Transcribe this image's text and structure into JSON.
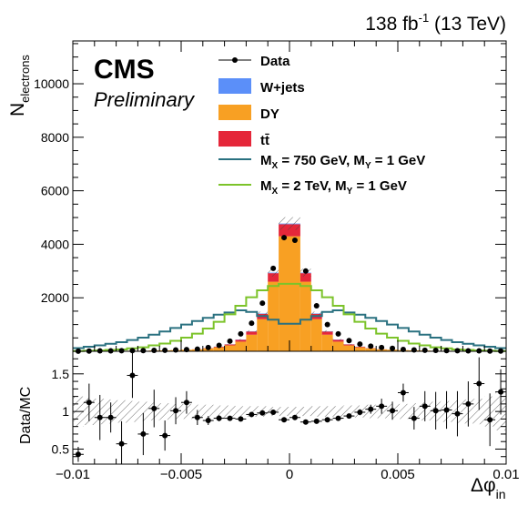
{
  "header": {
    "lumi_main": "138 fb",
    "lumi_exp": "-1",
    "lumi_energy": " (13 TeV)"
  },
  "cms": {
    "label": "CMS",
    "sublabel": "Preliminary"
  },
  "legend": {
    "data": "Data",
    "wjets": "W+jets",
    "dy": "DY",
    "ttbar": "tt̄",
    "sig1": "M_X = 750 GeV, M_Y = 1 GeV",
    "sig1_parts": [
      "M",
      "X",
      " = 750 GeV, M",
      "Y",
      " = 1 GeV"
    ],
    "sig2": "M_X = 2 TeV, M_Y = 1 GeV",
    "sig2_parts": [
      "M",
      "X",
      " = 2 TeV, M",
      "Y",
      " = 1 GeV"
    ]
  },
  "colors": {
    "wjets": "#5b8ff9",
    "dy": "#f8a023",
    "ttbar": "#e5273a",
    "sig1": "#2a7180",
    "sig2": "#7cc32a",
    "data": "#000000"
  },
  "chart_data": {
    "type": "bar",
    "xlabel_main": "Δφ",
    "xlabel_sub": "in",
    "ylabel_main": "N",
    "ylabel_sub": "electrons",
    "ratio_ylabel": "Data/MC",
    "xlim": [
      -0.01,
      0.01
    ],
    "ylim_main": [
      0,
      11600
    ],
    "ylim_ratio": [
      0.3,
      1.8
    ],
    "x_ticks": [
      -0.01,
      -0.005,
      0,
      0.005,
      0.01
    ],
    "x_tick_labels": [
      "−0.01",
      "−0.005",
      "0",
      "0.005",
      "0.01"
    ],
    "y_ticks_main": [
      2000,
      4000,
      6000,
      8000,
      10000
    ],
    "y_tick_labels_main": [
      "2000",
      "4000",
      "6000",
      "8000",
      "10000"
    ],
    "y_ticks_ratio": [
      0.5,
      1,
      1.5
    ],
    "y_tick_labels_ratio": [
      "0.5",
      "1",
      "1.5"
    ],
    "bin_edges": [
      -0.01,
      -0.0095,
      -0.009,
      -0.0085,
      -0.008,
      -0.0075,
      -0.007,
      -0.0065,
      -0.006,
      -0.0055,
      -0.005,
      -0.0045,
      -0.004,
      -0.0035,
      -0.003,
      -0.0025,
      -0.002,
      -0.0015,
      -0.001,
      -0.0005,
      0,
      0.0005,
      0.001,
      0.0015,
      0.002,
      0.0025,
      0.003,
      0.0035,
      0.004,
      0.0045,
      0.005,
      0.0055,
      0.006,
      0.0065,
      0.007,
      0.0075,
      0.008,
      0.0085,
      0.009,
      0.0095,
      0.01
    ],
    "series": [
      {
        "name": "DY",
        "type": "stacked-bar",
        "values": [
          5,
          5,
          10,
          10,
          15,
          20,
          20,
          30,
          35,
          45,
          60,
          70,
          110,
          150,
          220,
          360,
          620,
          1200,
          2600,
          4300,
          4300,
          2600,
          1200,
          620,
          360,
          220,
          150,
          110,
          70,
          60,
          45,
          35,
          30,
          20,
          20,
          15,
          10,
          10,
          5,
          5
        ]
      },
      {
        "name": "tt̄",
        "type": "stacked-bar",
        "values": [
          0,
          0,
          0,
          0,
          0,
          0,
          0,
          0,
          0,
          0,
          0,
          5,
          10,
          20,
          35,
          70,
          120,
          200,
          320,
          450,
          450,
          320,
          200,
          120,
          70,
          35,
          20,
          10,
          5,
          0,
          0,
          0,
          0,
          0,
          0,
          0,
          0,
          0,
          0,
          0
        ]
      },
      {
        "name": "W+jets",
        "type": "stacked-bar",
        "values": [
          0,
          0,
          0,
          0,
          0,
          0,
          0,
          0,
          0,
          0,
          0,
          0,
          0,
          5,
          5,
          10,
          10,
          15,
          20,
          25,
          25,
          20,
          15,
          10,
          10,
          5,
          5,
          0,
          0,
          0,
          0,
          0,
          0,
          0,
          0,
          0,
          0,
          0,
          0,
          0
        ]
      },
      {
        "name": "Data",
        "type": "points",
        "values": [
          5,
          10,
          15,
          15,
          20,
          25,
          25,
          35,
          40,
          50,
          65,
          80,
          140,
          220,
          380,
          650,
          1050,
          1800,
          3100,
          4250,
          4150,
          3000,
          1700,
          1000,
          650,
          400,
          270,
          190,
          140,
          110,
          70,
          50,
          40,
          35,
          25,
          20,
          15,
          15,
          10,
          10
        ]
      },
      {
        "name": "M_X = 750 GeV, M_Y = 1 GeV",
        "type": "step",
        "values": [
          120,
          170,
          220,
          280,
          340,
          420,
          510,
          620,
          740,
          870,
          1000,
          1130,
          1250,
          1370,
          1450,
          1530,
          1470,
          1320,
          1180,
          1030,
          1030,
          1180,
          1320,
          1470,
          1530,
          1450,
          1370,
          1250,
          1130,
          1000,
          870,
          740,
          620,
          510,
          420,
          340,
          280,
          220,
          170,
          120
        ]
      },
      {
        "name": "M_X = 2 TeV, M_Y = 1 GeV",
        "type": "step",
        "values": [
          10,
          20,
          30,
          50,
          70,
          110,
          150,
          220,
          290,
          390,
          510,
          660,
          850,
          1100,
          1380,
          1700,
          2020,
          2280,
          2440,
          2520,
          2520,
          2440,
          2280,
          2020,
          1700,
          1380,
          1100,
          850,
          660,
          510,
          390,
          290,
          220,
          150,
          110,
          70,
          50,
          30,
          20,
          10
        ]
      }
    ],
    "ratio": {
      "values": [
        0.43,
        1.12,
        0.92,
        0.92,
        0.57,
        1.48,
        0.7,
        1.04,
        0.68,
        1.01,
        1.12,
        0.92,
        0.88,
        0.91,
        0.91,
        0.9,
        0.96,
        0.98,
        0.99,
        0.89,
        0.92,
        0.86,
        0.87,
        0.89,
        0.91,
        0.94,
        0.99,
        1.03,
        1.07,
        1.01,
        1.25,
        0.91,
        1.07,
        1.01,
        1.02,
        0.97,
        1.1,
        1.37,
        0.89,
        1.26
      ],
      "errors": [
        0.1,
        0.25,
        0.3,
        0.2,
        0.3,
        0.3,
        0.28,
        0.25,
        0.2,
        0.18,
        0.15,
        0.1,
        0.06,
        0.04,
        0.03,
        0.02,
        0.02,
        0.01,
        0.01,
        0.01,
        0.01,
        0.01,
        0.01,
        0.02,
        0.02,
        0.03,
        0.04,
        0.06,
        0.1,
        0.12,
        0.12,
        0.15,
        0.2,
        0.25,
        0.25,
        0.3,
        0.3,
        0.35,
        0.35,
        0.3
      ],
      "band_halfwidth": [
        0.2,
        0.18,
        0.17,
        0.16,
        0.15,
        0.14,
        0.13,
        0.12,
        0.11,
        0.1,
        0.1,
        0.09,
        0.09,
        0.08,
        0.08,
        0.07,
        0.07,
        0.07,
        0.06,
        0.06,
        0.06,
        0.06,
        0.07,
        0.07,
        0.07,
        0.08,
        0.08,
        0.09,
        0.09,
        0.1,
        0.1,
        0.11,
        0.12,
        0.13,
        0.14,
        0.15,
        0.16,
        0.17,
        0.2,
        0.25
      ]
    },
    "stat_uncertainty_band": true,
    "legend_position": "top-center",
    "grid": false
  }
}
